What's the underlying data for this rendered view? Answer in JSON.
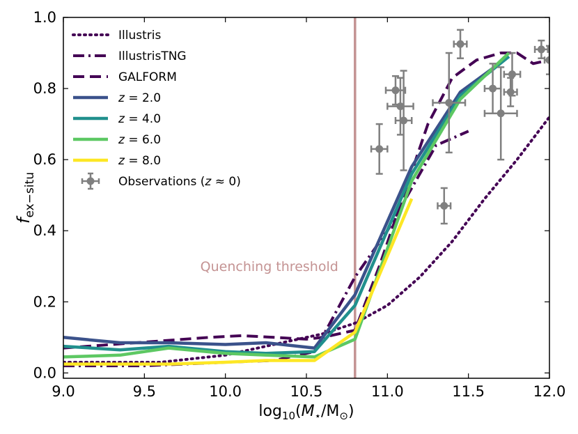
{
  "chart_data": {
    "type": "line",
    "xlabel": "log10(M⋆/M⊙)",
    "ylabel": "f_ex−situ",
    "xlim": [
      9.0,
      12.0
    ],
    "ylim": [
      -0.015,
      1.0
    ],
    "xticks": [
      "9.0",
      "9.5",
      "10.0",
      "10.5",
      "11.0",
      "11.5",
      "12.0"
    ],
    "xtick_values": [
      9.0,
      9.5,
      10.0,
      10.5,
      11.0,
      11.5,
      12.0
    ],
    "yticks": [
      "0.0",
      "0.2",
      "0.4",
      "0.6",
      "0.8",
      "1.0"
    ],
    "ytick_values": [
      0.0,
      0.2,
      0.4,
      0.6,
      0.8,
      1.0
    ],
    "annotation": {
      "text": "Quenching threshold",
      "x": 10.8,
      "color": "#c49393"
    },
    "series": [
      {
        "name": "Illustris",
        "label": "Illustris",
        "style": "dotted",
        "color": "#440154",
        "x": [
          9.0,
          9.2,
          9.4,
          9.6,
          9.8,
          10.0,
          10.2,
          10.4,
          10.6,
          10.8,
          11.0,
          11.2,
          11.4,
          11.6,
          11.8,
          12.0
        ],
        "y": [
          0.03,
          0.03,
          0.03,
          0.03,
          0.04,
          0.05,
          0.07,
          0.09,
          0.11,
          0.14,
          0.19,
          0.27,
          0.37,
          0.49,
          0.6,
          0.72
        ]
      },
      {
        "name": "IllustrisTNG",
        "label": "IllustrisTNG",
        "style": "dashdot",
        "color": "#440154",
        "x": [
          9.0,
          9.5,
          10.0,
          10.3,
          10.55,
          10.8,
          11.0,
          11.15,
          11.3,
          11.5
        ],
        "y": [
          0.02,
          0.02,
          0.03,
          0.035,
          0.06,
          0.27,
          0.4,
          0.52,
          0.64,
          0.68
        ]
      },
      {
        "name": "GALFORM",
        "label": "GALFORM",
        "style": "dashed",
        "color": "#440154",
        "x": [
          9.0,
          9.3,
          9.6,
          9.9,
          10.1,
          10.3,
          10.5,
          10.6,
          10.8,
          10.95,
          11.1,
          11.25,
          11.4,
          11.55,
          11.7,
          11.8,
          11.9,
          12.0
        ],
        "y": [
          0.07,
          0.08,
          0.09,
          0.1,
          0.105,
          0.1,
          0.095,
          0.1,
          0.12,
          0.3,
          0.5,
          0.7,
          0.83,
          0.88,
          0.9,
          0.9,
          0.87,
          0.88
        ]
      },
      {
        "name": "z = 2.0",
        "label": "= 2.0",
        "style": "solid",
        "color": "#3b528b",
        "x": [
          9.0,
          9.35,
          9.65,
          10.0,
          10.25,
          10.55,
          10.8,
          11.15,
          11.45,
          11.75
        ],
        "y": [
          0.1,
          0.085,
          0.085,
          0.08,
          0.085,
          0.07,
          0.22,
          0.58,
          0.79,
          0.89
        ]
      },
      {
        "name": "z = 4.0",
        "label": "= 4.0",
        "style": "solid",
        "color": "#21908d",
        "x": [
          9.0,
          9.35,
          9.65,
          10.0,
          10.25,
          10.55,
          10.8,
          11.15,
          11.45,
          11.75
        ],
        "y": [
          0.075,
          0.065,
          0.075,
          0.06,
          0.055,
          0.06,
          0.19,
          0.56,
          0.78,
          0.89
        ]
      },
      {
        "name": "z = 6.0",
        "label": "= 6.0",
        "style": "solid",
        "color": "#5dc863",
        "x": [
          9.0,
          9.35,
          9.65,
          10.0,
          10.25,
          10.55,
          10.8,
          11.15,
          11.45,
          11.75
        ],
        "y": [
          0.045,
          0.05,
          0.07,
          0.055,
          0.05,
          0.045,
          0.095,
          0.54,
          0.77,
          0.9
        ]
      },
      {
        "name": "z = 8.0",
        "label": "= 8.0",
        "style": "solid",
        "color": "#fde725",
        "x": [
          9.0,
          9.35,
          9.65,
          10.0,
          10.25,
          10.55,
          10.8,
          11.15
        ],
        "y": [
          0.025,
          0.025,
          0.025,
          0.03,
          0.035,
          0.035,
          0.115,
          0.49
        ]
      }
    ],
    "observations": {
      "name": "Observations (z≈0)",
      "label": "Observations (",
      "label_suffix": "≈ 0)",
      "color": "#808080",
      "points": [
        {
          "x": 10.95,
          "y": 0.63,
          "xerr": 0.05,
          "yerr": 0.07
        },
        {
          "x": 11.05,
          "y": 0.795,
          "xerr": 0.06,
          "yerr": 0.04
        },
        {
          "x": 11.08,
          "y": 0.75,
          "xerr": 0.08,
          "yerr": 0.08
        },
        {
          "x": 11.1,
          "y": 0.71,
          "xerr": 0.05,
          "yerr": 0.14
        },
        {
          "x": 11.35,
          "y": 0.47,
          "xerr": 0.04,
          "yerr": 0.05
        },
        {
          "x": 11.38,
          "y": 0.76,
          "xerr": 0.1,
          "yerr": 0.14
        },
        {
          "x": 11.45,
          "y": 0.925,
          "xerr": 0.04,
          "yerr": 0.04
        },
        {
          "x": 11.65,
          "y": 0.8,
          "xerr": 0.05,
          "yerr": 0.07
        },
        {
          "x": 11.7,
          "y": 0.73,
          "xerr": 0.1,
          "yerr": 0.13
        },
        {
          "x": 11.77,
          "y": 0.84,
          "xerr": 0.05,
          "yerr": 0.06
        },
        {
          "x": 11.76,
          "y": 0.79,
          "xerr": 0.04,
          "yerr": 0.04
        },
        {
          "x": 11.95,
          "y": 0.91,
          "xerr": 0.04,
          "yerr": 0.025
        },
        {
          "x": 12.0,
          "y": 0.88,
          "xerr": 0.03,
          "yerr": 0.04
        }
      ]
    }
  }
}
